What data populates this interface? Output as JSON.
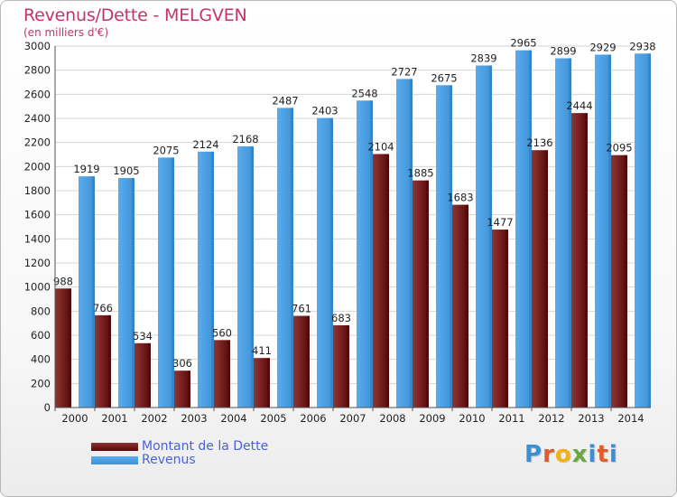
{
  "title": "Revenus/Dette - MELGVEN",
  "subtitle": "(en milliers d'€)",
  "colors": {
    "series_0": "#7a1f1f",
    "series_1": "#3f97df",
    "title": "#c2346e",
    "legend_text": "#4a62d8"
  },
  "legend": {
    "items": [
      {
        "label": "Montant de la Dette",
        "color": "#6e1a1a"
      },
      {
        "label": "Revenus",
        "color": "#4aa3e6"
      }
    ]
  },
  "logo": {
    "text": "Proxiti",
    "icon": "proxiti-logo"
  },
  "chart_data": {
    "type": "bar",
    "categories": [
      "2000",
      "2001",
      "2002",
      "2003",
      "2004",
      "2005",
      "2006",
      "2007",
      "2008",
      "2009",
      "2010",
      "2011",
      "2012",
      "2013",
      "2014"
    ],
    "series": [
      {
        "name": "Montant de la Dette",
        "values": [
          988,
          766,
          534,
          306,
          560,
          411,
          761,
          683,
          2104,
          1885,
          1683,
          1477,
          2136,
          2444,
          2095
        ]
      },
      {
        "name": "Revenus",
        "values": [
          1919,
          1905,
          2075,
          2124,
          2168,
          2487,
          2403,
          2548,
          2727,
          2675,
          2839,
          2965,
          2899,
          2929,
          2938
        ]
      }
    ],
    "ylim": [
      0,
      3000
    ],
    "yticks": [
      0,
      200,
      400,
      600,
      800,
      1000,
      1200,
      1400,
      1600,
      1800,
      2000,
      2200,
      2400,
      2600,
      2800,
      3000
    ],
    "grid": true,
    "legend_position": "bottom-left"
  }
}
